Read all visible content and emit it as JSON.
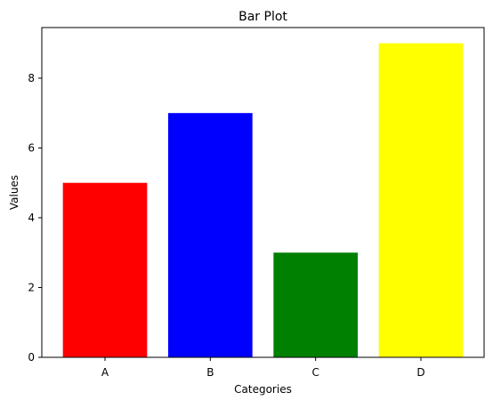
{
  "chart_data": {
    "type": "bar",
    "title": "Bar Plot",
    "xlabel": "Categories",
    "ylabel": "Values",
    "categories": [
      "A",
      "B",
      "C",
      "D"
    ],
    "values": [
      5,
      7,
      3,
      9
    ],
    "colors": [
      "#ff0000",
      "#0000ff",
      "#008000",
      "#ffff00"
    ],
    "ylim": [
      0,
      9.45
    ],
    "yticks": [
      0,
      2,
      4,
      6,
      8
    ],
    "grid": false
  }
}
